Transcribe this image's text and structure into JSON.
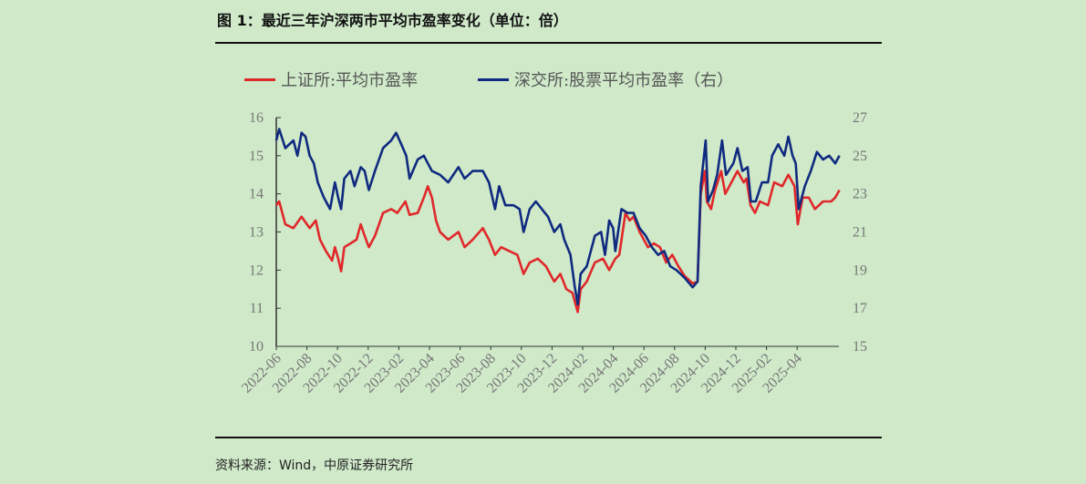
{
  "title": "图 1：最近三年沪深两市平均市盈率变化（单位：倍）",
  "source": "资料来源：Wind，中原证券研究所",
  "chart_data": {
    "type": "line",
    "title": "最近三年沪深两市平均市盈率变化（单位：倍）",
    "x_unit": "months since 2022-06",
    "x_tick_labels": [
      "2022-06",
      "2022-08",
      "2022-10",
      "2022-12",
      "2023-02",
      "2023-04",
      "2023-06",
      "2023-08",
      "2023-10",
      "2023-12",
      "2024-02",
      "2024-04",
      "2024-06",
      "2024-08",
      "2024-10",
      "2024-12",
      "2025-02",
      "2025-04"
    ],
    "xlim": [
      0,
      36.8
    ],
    "y_left": {
      "ylim": [
        10,
        16
      ],
      "ticks": [
        "10",
        "11",
        "12",
        "13",
        "14",
        "15",
        "16"
      ]
    },
    "y_right": {
      "ylim": [
        15,
        27
      ],
      "ticks": [
        "15",
        "17",
        "19",
        "21",
        "23",
        "25",
        "27"
      ]
    },
    "grid": false,
    "legend_position": "top",
    "series": [
      {
        "name": "上证所:平均市盈率",
        "axis": "left",
        "color": "#e0282a",
        "x": [
          0,
          0.19,
          0.59,
          1.12,
          1.65,
          2.18,
          2.58,
          2.85,
          3.24,
          3.64,
          3.83,
          4.04,
          4.23,
          4.44,
          4.84,
          5.24,
          5.51,
          5.77,
          6.04,
          6.44,
          6.97,
          7.5,
          7.9,
          8.43,
          8.7,
          9.23,
          9.63,
          9.89,
          10.16,
          10.43,
          10.69,
          11.22,
          11.89,
          12.29,
          12.82,
          13.48,
          13.88,
          14.28,
          14.68,
          15.21,
          15.74,
          16.14,
          16.54,
          17.07,
          17.61,
          18.14,
          18.54,
          18.94,
          19.34,
          19.47,
          19.68,
          19.87,
          20.27,
          20.8,
          21.33,
          21.73,
          22.13,
          22.39,
          22.79,
          23.06,
          23.32,
          23.72,
          24.26,
          24.65,
          25.05,
          25.45,
          25.85,
          26.25,
          26.65,
          27.18,
          27.5,
          27.71,
          27.98,
          28.11,
          28.38,
          28.64,
          29.04,
          29.31,
          29.71,
          30.11,
          30.51,
          30.69,
          30.96,
          31.25,
          31.57,
          32.1,
          32.5,
          33.03,
          33.43,
          33.83,
          34.04,
          34.36,
          34.76,
          35.16,
          35.69,
          36.22,
          36.49,
          36.76
        ],
        "y": [
          13.7,
          13.8,
          13.2,
          13.1,
          13.4,
          13.1,
          13.3,
          12.8,
          12.5,
          12.25,
          12.6,
          12.3,
          11.97,
          12.6,
          12.7,
          12.8,
          13.2,
          12.9,
          12.6,
          12.9,
          13.5,
          13.6,
          13.5,
          13.8,
          13.45,
          13.5,
          13.9,
          14.2,
          13.9,
          13.3,
          13.0,
          12.8,
          13.0,
          12.6,
          12.8,
          13.1,
          12.8,
          12.4,
          12.6,
          12.5,
          12.4,
          11.9,
          12.2,
          12.3,
          12.1,
          11.7,
          11.9,
          11.5,
          11.4,
          11.2,
          10.9,
          11.5,
          11.7,
          12.2,
          12.3,
          12.0,
          12.3,
          12.4,
          13.5,
          13.3,
          13.4,
          13.0,
          12.6,
          12.7,
          12.6,
          12.2,
          12.4,
          12.1,
          11.85,
          11.65,
          11.7,
          14.0,
          14.6,
          13.8,
          13.6,
          14.1,
          14.6,
          14.0,
          14.3,
          14.6,
          14.3,
          14.4,
          13.7,
          13.5,
          13.8,
          13.7,
          14.3,
          14.2,
          14.5,
          14.2,
          13.2,
          13.9,
          13.9,
          13.6,
          13.8,
          13.8,
          13.9,
          14.1
        ]
      },
      {
        "name": "深交所:股票平均市盈率（右）",
        "axis": "right",
        "color": "#102a80",
        "x": [
          0,
          0.19,
          0.59,
          1.12,
          1.38,
          1.65,
          1.91,
          2.18,
          2.45,
          2.71,
          3.11,
          3.51,
          3.83,
          4.04,
          4.23,
          4.44,
          4.84,
          5.11,
          5.51,
          5.77,
          6.04,
          6.44,
          6.97,
          7.5,
          7.82,
          8.16,
          8.48,
          8.7,
          9.23,
          9.63,
          9.89,
          10.16,
          10.69,
          11.22,
          11.89,
          12.29,
          12.82,
          13.48,
          13.88,
          14.28,
          14.55,
          14.95,
          15.48,
          15.88,
          16.14,
          16.54,
          16.94,
          17.34,
          17.74,
          18.14,
          18.54,
          18.8,
          19.2,
          19.47,
          19.68,
          19.87,
          20.27,
          20.8,
          21.2,
          21.46,
          21.73,
          21.99,
          22.13,
          22.53,
          22.93,
          23.32,
          23.72,
          24.12,
          24.52,
          24.92,
          25.32,
          25.72,
          26.12,
          26.65,
          27.18,
          27.5,
          27.71,
          28.03,
          28.19,
          28.51,
          28.78,
          29.1,
          29.36,
          29.84,
          30.11,
          30.43,
          30.77,
          30.98,
          31.3,
          31.7,
          32.1,
          32.37,
          32.77,
          33.16,
          33.43,
          33.7,
          33.91,
          34.1,
          34.5,
          34.89,
          35.29,
          35.69,
          36.09,
          36.49,
          36.76
        ],
        "y": [
          25.8,
          26.4,
          25.4,
          25.8,
          25,
          26.2,
          26,
          25,
          24.6,
          23.6,
          22.8,
          22.2,
          23.6,
          22.8,
          22.2,
          23.8,
          24.2,
          23.4,
          24.4,
          24.2,
          23.2,
          24.2,
          25.4,
          25.8,
          26.2,
          25.6,
          25,
          23.8,
          24.8,
          25,
          24.6,
          24.2,
          24,
          23.6,
          24.4,
          23.8,
          24.2,
          24.2,
          23.6,
          22.2,
          23.4,
          22.4,
          22.4,
          22.2,
          21,
          22.2,
          22.6,
          22.2,
          21.8,
          21,
          21.4,
          20.6,
          19.8,
          18.2,
          17.2,
          18.8,
          19.2,
          20.8,
          21,
          19.8,
          21.6,
          21.2,
          20,
          22.2,
          22,
          22,
          21.2,
          20.8,
          20.2,
          19.8,
          20,
          19.2,
          19,
          18.6,
          18.1,
          18.4,
          23.4,
          25.8,
          22.6,
          23.2,
          24,
          25.8,
          24,
          24.6,
          25.4,
          24.2,
          24.4,
          22.6,
          22.6,
          23.6,
          23.6,
          25,
          25.6,
          25,
          26,
          25,
          24.6,
          22.2,
          23.4,
          24.2,
          25.2,
          24.8,
          25,
          24.6,
          25
        ]
      }
    ]
  }
}
